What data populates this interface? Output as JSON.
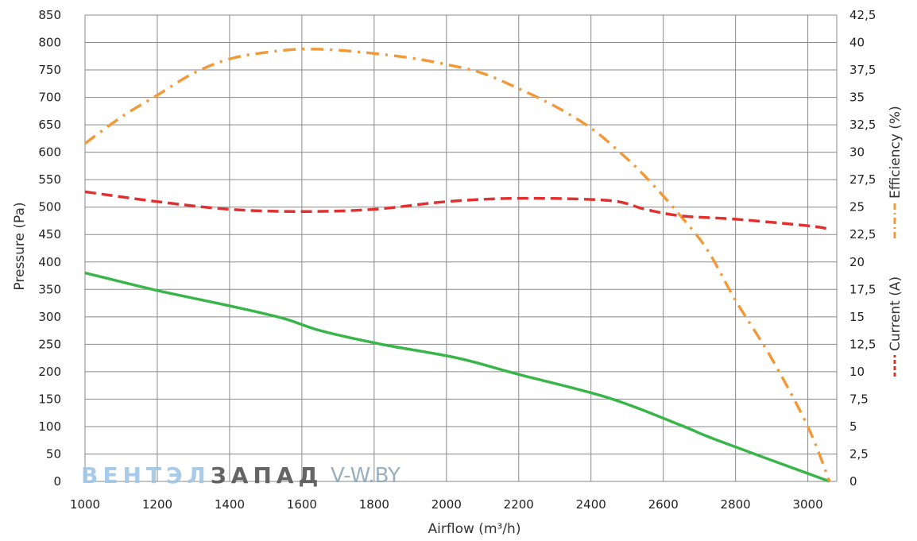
{
  "chart_data": {
    "type": "line",
    "xlabel": "Airflow (m³/h)",
    "ylabel": "Pressure (Pa)",
    "y2label_efficiency": "Efficiency (%)",
    "y2label_current": "Current (A)",
    "xlim": [
      1000,
      3080
    ],
    "ylim": [
      0,
      850
    ],
    "y2lim": [
      0,
      42.5
    ],
    "x_ticks": [
      "1000",
      "1200",
      "1400",
      "1600",
      "1800",
      "2000",
      "2200",
      "2400",
      "2600",
      "2800",
      "3000"
    ],
    "y_ticks": [
      "0",
      "50",
      "100",
      "150",
      "200",
      "250",
      "300",
      "350",
      "400",
      "450",
      "500",
      "550",
      "600",
      "650",
      "700",
      "750",
      "800",
      "850"
    ],
    "y2_ticks": [
      "0",
      "2,5",
      "5",
      "7,5",
      "10",
      "12,5",
      "15",
      "17,5",
      "20",
      "22,5",
      "25",
      "27,5",
      "30",
      "32,5",
      "35",
      "37,5",
      "40",
      "42,5"
    ],
    "grid": true,
    "series": [
      {
        "key": "pressure",
        "axis": "left",
        "color": "#3ab54a",
        "style": "solid",
        "points": [
          [
            1000,
            380
          ],
          [
            1050,
            372
          ],
          [
            1200,
            348
          ],
          [
            1400,
            320
          ],
          [
            1550,
            297
          ],
          [
            1650,
            275
          ],
          [
            1820,
            250
          ],
          [
            2030,
            225
          ],
          [
            2200,
            195
          ],
          [
            2450,
            152
          ],
          [
            2650,
            102
          ],
          [
            2750,
            75
          ],
          [
            3060,
            0
          ]
        ]
      },
      {
        "key": "efficiency",
        "name": "Efficiency (%)",
        "axis": "right",
        "color": "#f29a3a",
        "style": "dashdot",
        "points": [
          [
            1000,
            30.8
          ],
          [
            1100,
            33.2
          ],
          [
            1200,
            35.2
          ],
          [
            1300,
            37.2
          ],
          [
            1400,
            38.5
          ],
          [
            1500,
            39.1
          ],
          [
            1600,
            39.4
          ],
          [
            1700,
            39.3
          ],
          [
            1800,
            39.0
          ],
          [
            1900,
            38.6
          ],
          [
            2000,
            38.0
          ],
          [
            2100,
            37.2
          ],
          [
            2200,
            35.8
          ],
          [
            2300,
            34.2
          ],
          [
            2400,
            32.2
          ],
          [
            2480,
            30.0
          ],
          [
            2550,
            27.8
          ],
          [
            2640,
            24.5
          ],
          [
            2720,
            21.2
          ],
          [
            2800,
            16.5
          ],
          [
            2900,
            11.2
          ],
          [
            3000,
            5.0
          ],
          [
            3060,
            0
          ]
        ]
      },
      {
        "key": "current",
        "name": "Current (A)",
        "axis": "right",
        "color": "#e03030",
        "style": "dashed",
        "points": [
          [
            1000,
            26.4
          ],
          [
            1200,
            25.5
          ],
          [
            1400,
            24.8
          ],
          [
            1600,
            24.6
          ],
          [
            1800,
            24.8
          ],
          [
            2000,
            25.5
          ],
          [
            2200,
            25.8
          ],
          [
            2450,
            25.6
          ],
          [
            2550,
            24.8
          ],
          [
            2650,
            24.2
          ],
          [
            2800,
            23.9
          ],
          [
            3000,
            23.3
          ],
          [
            3060,
            23.0
          ]
        ]
      }
    ]
  },
  "watermark": {
    "brand_part1": "ВЕНТЭЛ",
    "brand_part2": "ЗАПАД",
    "site": "V-W.BY"
  }
}
